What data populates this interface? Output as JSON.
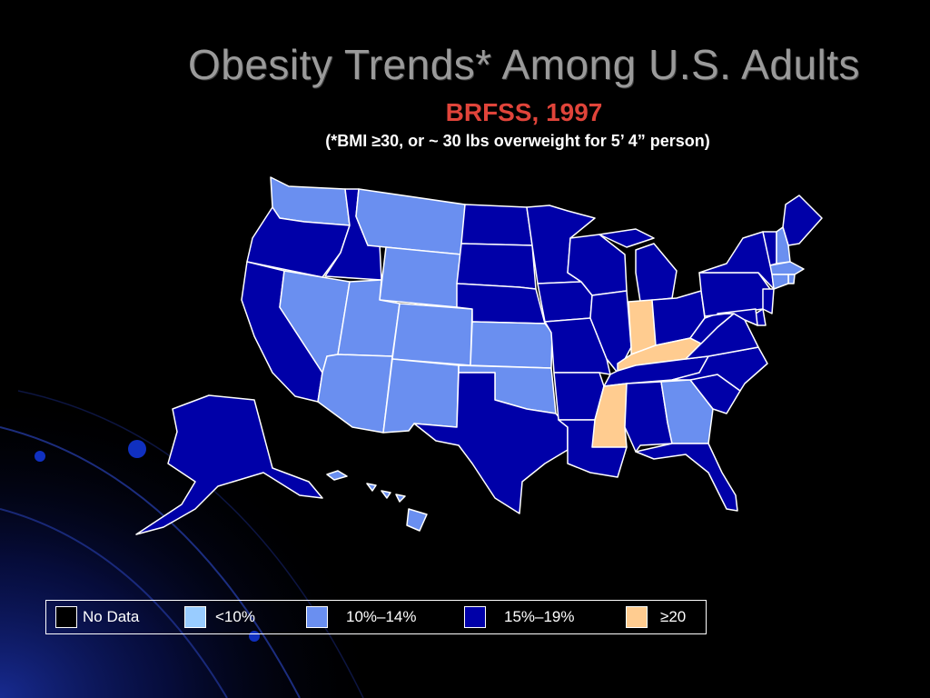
{
  "slide": {
    "title": "Obesity Trends* Among U.S. Adults",
    "subtitle": "BRFSS, 1997",
    "note": "(*BMI ≥30, or ~ 30 lbs overweight for 5’ 4” person)"
  },
  "legend": [
    {
      "key": "nodata",
      "label": "No Data",
      "color": "#000000"
    },
    {
      "key": "lt10",
      "label": "<10%",
      "color": "#99ccff"
    },
    {
      "key": "10-14",
      "label": "10%–14%",
      "color": "#6a8ff0"
    },
    {
      "key": "15-19",
      "label": "15%–19%",
      "color": "#0000a8"
    },
    {
      "key": "ge20",
      "label": "≥20",
      "color": "#ffcc90"
    }
  ],
  "states": {
    "WA": "10-14",
    "OR": "15-19",
    "CA": "15-19",
    "ID": "15-19",
    "NV": "10-14",
    "MT": "10-14",
    "WY": "10-14",
    "UT": "10-14",
    "CO": "10-14",
    "AZ": "10-14",
    "NM": "10-14",
    "ND": "15-19",
    "SD": "15-19",
    "NE": "15-19",
    "KS": "10-14",
    "OK": "10-14",
    "TX": "15-19",
    "MN": "15-19",
    "IA": "15-19",
    "MO": "15-19",
    "AR": "15-19",
    "LA": "15-19",
    "WI": "15-19",
    "IL": "15-19",
    "MI": "15-19",
    "IN": "ge20",
    "OH": "15-19",
    "KY": "ge20",
    "TN": "15-19",
    "MS": "ge20",
    "AL": "15-19",
    "GA": "10-14",
    "FL": "15-19",
    "SC": "15-19",
    "NC": "15-19",
    "VA": "15-19",
    "WV": "15-19",
    "PA": "15-19",
    "NY": "15-19",
    "ME": "15-19",
    "VT": "15-19",
    "NH": "10-14",
    "MA": "10-14",
    "RI": "10-14",
    "CT": "10-14",
    "NJ": "15-19",
    "DE": "15-19",
    "MD": "15-19",
    "AK": "15-19",
    "HI": "10-14"
  }
}
